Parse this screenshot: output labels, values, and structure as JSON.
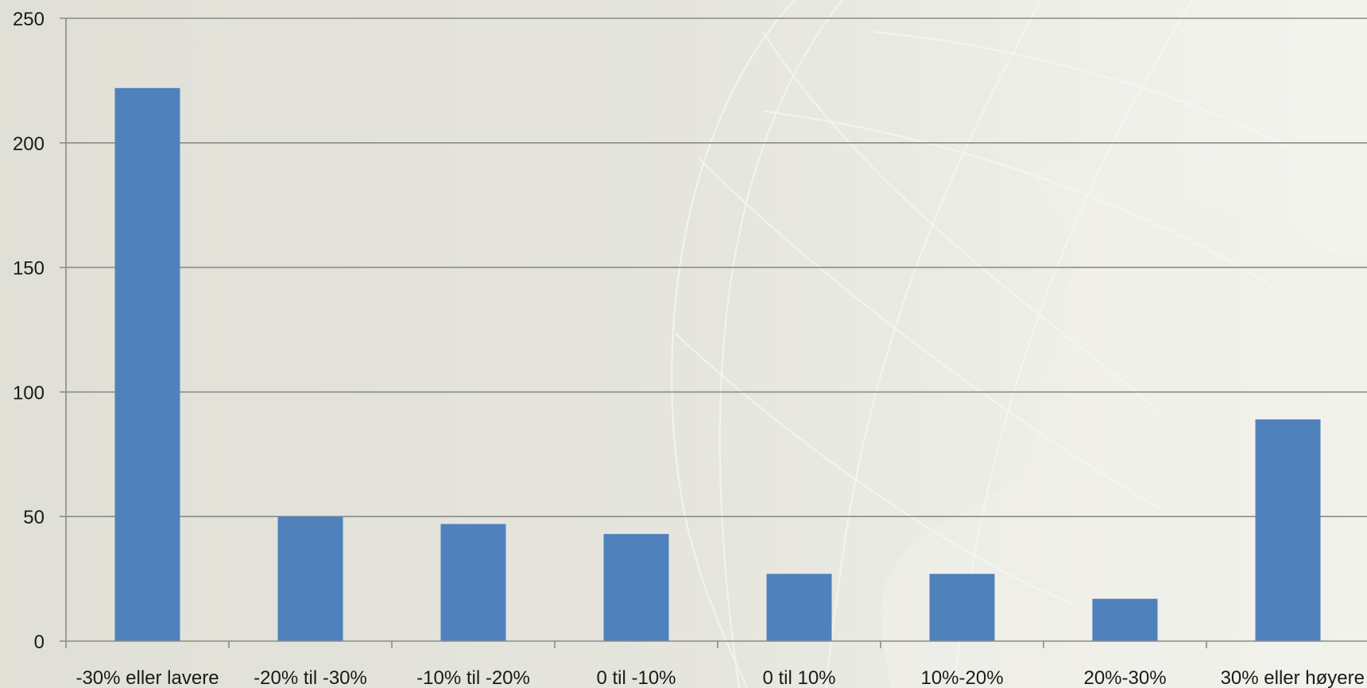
{
  "chart_data": {
    "type": "bar",
    "categories": [
      "-30% eller lavere",
      "-20% til -30%",
      "-10% til -20%",
      "0 til -10%",
      "0 til 10%",
      "10%-20%",
      "20%-30%",
      "30% eller høyere"
    ],
    "values": [
      222,
      50,
      47,
      43,
      27,
      27,
      17,
      89
    ],
    "ylim": [
      0,
      250
    ],
    "yticks": [
      0,
      50,
      100,
      150,
      200,
      250
    ],
    "grid": true,
    "bar_color": "#4f81bd",
    "title": "",
    "xlabel": "",
    "ylabel": ""
  }
}
